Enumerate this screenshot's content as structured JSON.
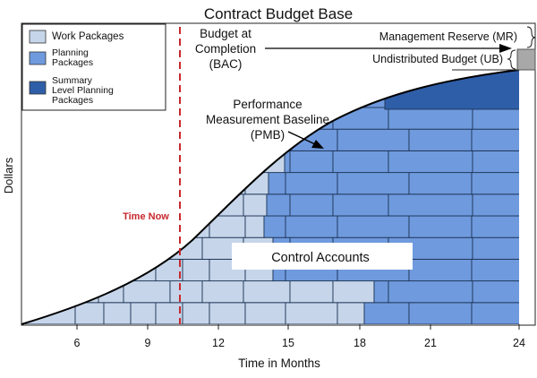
{
  "title": "Contract Budget Base",
  "legend": [
    {
      "label": "Work Packages",
      "color": "#c6d5e9"
    },
    {
      "label": "Planning Packages",
      "color": "#6f9ade"
    },
    {
      "label": "Summary Level Planning Packages",
      "color": "#2f5ea8"
    }
  ],
  "annotations": {
    "bac": [
      "Budget at",
      "Completion",
      "(BAC)"
    ],
    "mr": "Management Reserve (MR)",
    "ub": "Undistributed Budget (UB)",
    "pmb": [
      "Performance",
      "Measurement Baseline",
      "(PMB)"
    ],
    "time_now": "Time Now",
    "control_accounts": "Control Accounts"
  },
  "axes": {
    "xlabel": "Time in Months",
    "ylabel": "Dollars",
    "xticks": [
      "6",
      "9",
      "12",
      "15",
      "18",
      "21",
      "24"
    ]
  },
  "colors": {
    "work": "#c6d5e9",
    "planning": "#6f9ade",
    "summary": "#2f5ea8",
    "time_now": "#c8282d",
    "reserve": "#a8a8a8"
  }
}
